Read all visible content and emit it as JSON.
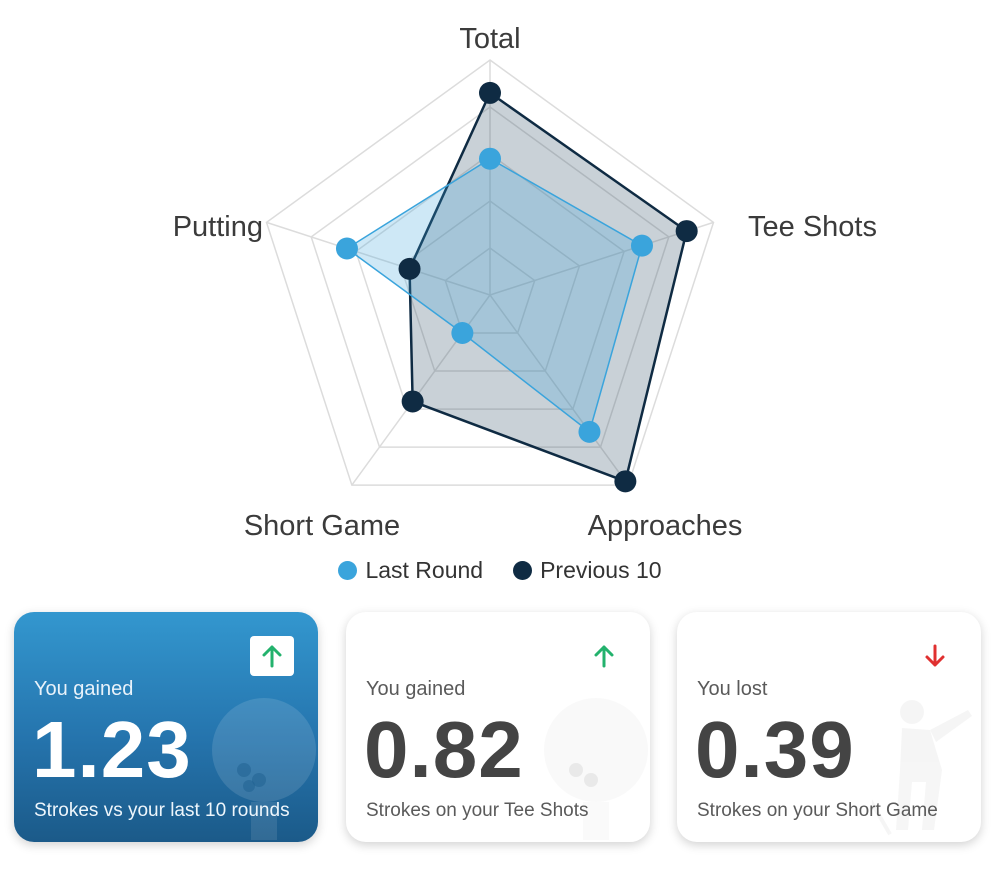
{
  "chart_data": {
    "type": "radar",
    "axes": [
      "Total",
      "Tee Shots",
      "Approaches",
      "Short Game",
      "Putting"
    ],
    "rmax": 1,
    "grid_levels": 5,
    "series": [
      {
        "name": "Last Round",
        "color": "#3aa4dc",
        "values": [
          0.58,
          0.68,
          0.72,
          0.2,
          0.64
        ]
      },
      {
        "name": "Previous 10",
        "color": "#0f2b43",
        "values": [
          0.86,
          0.88,
          0.98,
          0.56,
          0.36
        ]
      }
    ]
  },
  "legend": {
    "last_round": "Last Round",
    "previous": "Previous 10"
  },
  "cards": [
    {
      "caption": "You gained",
      "value": "1.23",
      "sub": "Strokes vs your last 10 rounds",
      "trend": "up",
      "icon": "golf-ball-icon"
    },
    {
      "caption": "You gained",
      "value": "0.82",
      "sub": "Strokes on your Tee Shots",
      "trend": "up",
      "icon": "golf-ball-tee-icon"
    },
    {
      "caption": "You lost",
      "value": "0.39",
      "sub": "Strokes on your Short Game",
      "trend": "down",
      "icon": "golfer-swing-icon"
    }
  ],
  "colors": {
    "up_arrow": "#23b26d",
    "down_arrow": "#e03030",
    "highlight_card": "#2a7fbb"
  }
}
